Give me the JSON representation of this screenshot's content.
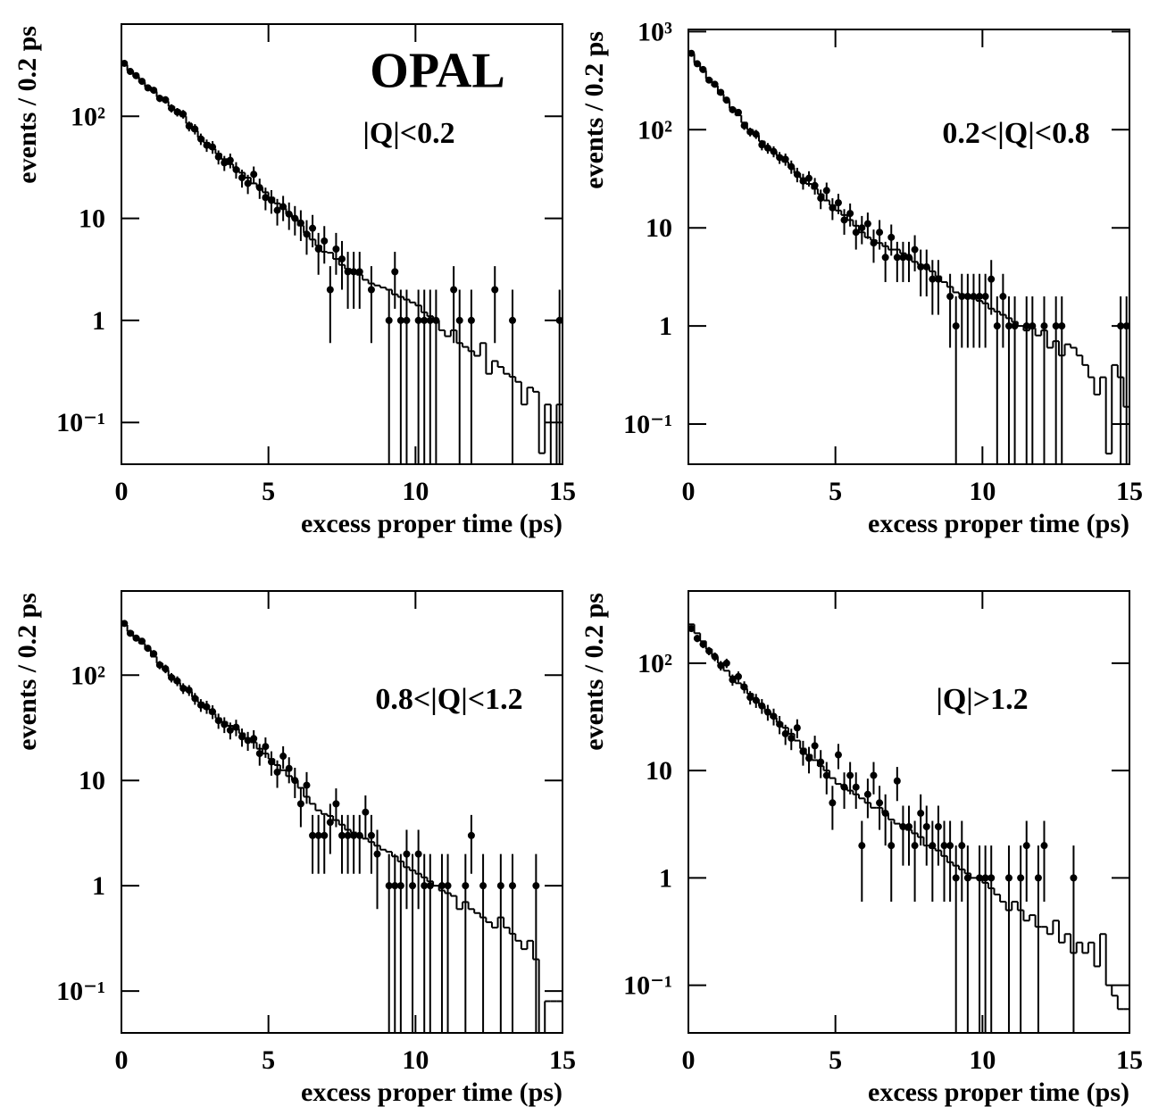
{
  "chart_data": [
    {
      "type": "histogram",
      "log_y": true,
      "color": "#000000",
      "annotations": [
        "OPAL",
        "|Q|<0.2"
      ],
      "xlabel": "excess proper time (ps)",
      "ylabel": "events / 0.2 ps",
      "xlim": [
        0,
        15
      ],
      "xticks": [
        0,
        5,
        10,
        15
      ],
      "ylim": [
        0.039,
        800
      ],
      "yticks": [
        {
          "value": 0.1,
          "label": "10⁻¹"
        },
        1,
        10,
        {
          "value": 100,
          "label": "10²"
        }
      ],
      "bins": [
        0,
        0.2,
        0.4,
        0.6,
        0.8,
        1,
        1.2,
        1.4,
        1.6,
        1.8,
        2,
        2.2,
        2.4,
        2.6,
        2.8,
        3,
        3.2,
        3.4,
        3.6,
        3.8,
        4,
        4.2,
        4.4,
        4.6,
        4.8,
        5,
        5.2,
        5.4,
        5.6,
        5.8,
        6,
        6.2,
        6.4,
        6.6,
        6.8,
        7,
        7.2,
        7.4,
        7.6,
        7.8,
        8,
        8.2,
        8.4,
        8.6,
        8.8,
        9,
        9.2,
        9.4,
        9.6,
        9.8,
        10,
        10.2,
        10.4,
        10.6,
        10.8,
        11,
        11.2,
        11.4,
        11.6,
        11.8,
        12,
        12.2,
        12.4,
        12.6,
        12.8,
        13,
        13.2,
        13.4,
        13.6,
        13.8,
        14,
        14.2,
        14.4,
        14.6,
        14.8,
        15
      ],
      "values": [
        320,
        280,
        245,
        215,
        195,
        175,
        155,
        140,
        125,
        115,
        100,
        85,
        72,
        62,
        55,
        48,
        43,
        38,
        34,
        31,
        28,
        25,
        22,
        20,
        18,
        16,
        14,
        12.5,
        11,
        10,
        8.5,
        7.2,
        6.2,
        5.4,
        4.7,
        4.6,
        4,
        3.5,
        3.2,
        3,
        2.8,
        2.5,
        2.3,
        2.2,
        2.1,
        2,
        1.8,
        1.7,
        1.6,
        1.5,
        1.4,
        1.2,
        1.1,
        1,
        0.8,
        0.7,
        0.8,
        0.6,
        0.55,
        0.5,
        0.45,
        0.6,
        0.3,
        0.4,
        0.35,
        0.3,
        0.28,
        0.25,
        0.15,
        0.22,
        0.2,
        0.05,
        0.15,
        0.03,
        0.15
      ],
      "data_values": [
        330,
        275,
        250,
        220,
        190,
        180,
        150,
        145,
        120,
        110,
        105,
        80,
        75,
        60,
        52,
        50,
        40,
        35,
        37,
        30,
        25,
        22,
        27,
        20,
        16,
        15,
        12,
        13,
        11,
        10,
        9,
        7,
        8,
        5,
        6,
        2,
        5,
        4,
        3,
        3,
        3,
        null,
        2,
        null,
        null,
        1,
        3,
        1,
        1,
        null,
        1,
        1,
        1,
        1,
        null,
        null,
        2,
        1,
        null,
        1,
        null,
        null,
        null,
        2,
        null,
        null,
        1,
        null,
        null,
        null,
        null,
        null,
        null,
        null,
        1
      ],
      "data_errors": [
        18.2,
        16.6,
        15.8,
        14.8,
        13.8,
        13.4,
        12.2,
        12,
        11,
        10.5,
        10.2,
        8.9,
        8.7,
        7.7,
        7.2,
        7.1,
        6.3,
        5.9,
        6.1,
        5.5,
        5,
        4.7,
        5.2,
        4.5,
        4,
        3.9,
        3.5,
        3.6,
        3.3,
        3.2,
        3,
        2.6,
        2.8,
        2.2,
        2.4,
        1.4,
        2.2,
        2,
        1.7,
        1.7,
        1.7,
        null,
        1.4,
        null,
        null,
        1,
        1.7,
        1,
        1,
        null,
        1,
        1,
        1,
        1,
        null,
        null,
        1.4,
        1,
        null,
        1,
        null,
        null,
        null,
        1.4,
        null,
        null,
        1,
        null,
        null,
        null,
        null,
        null,
        null,
        null,
        1
      ]
    },
    {
      "type": "histogram",
      "log_y": true,
      "color": "#000000",
      "annotations": [
        "0.2<|Q|<0.8"
      ],
      "xlabel": "excess proper time (ps)",
      "ylabel": "events / 0.2 ps",
      "xlim": [
        0,
        15
      ],
      "xticks": [
        0,
        5,
        10,
        15
      ],
      "ylim": [
        0.039,
        1050
      ],
      "yticks": [
        {
          "value": 0.1,
          "label": "10⁻¹"
        },
        1,
        10,
        {
          "value": 100,
          "label": "10²"
        },
        {
          "value": 1000,
          "label": "10³"
        }
      ],
      "bins": [
        0,
        0.2,
        0.4,
        0.6,
        0.8,
        1,
        1.2,
        1.4,
        1.6,
        1.8,
        2,
        2.2,
        2.4,
        2.6,
        2.8,
        3,
        3.2,
        3.4,
        3.6,
        3.8,
        4,
        4.2,
        4.4,
        4.6,
        4.8,
        5,
        5.2,
        5.4,
        5.6,
        5.8,
        6,
        6.2,
        6.4,
        6.6,
        6.8,
        7,
        7.2,
        7.4,
        7.6,
        7.8,
        8,
        8.2,
        8.4,
        8.6,
        8.8,
        9,
        9.2,
        9.4,
        9.6,
        9.8,
        10,
        10.2,
        10.4,
        10.6,
        10.8,
        11,
        11.2,
        11.4,
        11.6,
        11.8,
        12,
        12.2,
        12.4,
        12.6,
        12.8,
        13,
        13.2,
        13.4,
        13.6,
        13.8,
        14,
        14.2,
        14.4,
        14.6,
        14.8,
        15
      ],
      "values": [
        590,
        480,
        400,
        330,
        280,
        230,
        195,
        165,
        140,
        118,
        100,
        88,
        76,
        66,
        60,
        54,
        47,
        41,
        36,
        32,
        28,
        25,
        22,
        19,
        17,
        15,
        13.5,
        12,
        10.5,
        9,
        8,
        7.5,
        7,
        6.5,
        6,
        6,
        5.5,
        5,
        4.5,
        4.2,
        4,
        3.6,
        3.2,
        2.8,
        2.5,
        2.2,
        2.1,
        2,
        1.9,
        1.8,
        1.7,
        1.5,
        1.4,
        1.3,
        1.2,
        1.1,
        1,
        0.9,
        0.95,
        0.8,
        0.9,
        0.6,
        0.7,
        0.5,
        0.65,
        0.6,
        0.5,
        0.4,
        0.3,
        0.2,
        0.3,
        0.05,
        0.4,
        0.3,
        0.15
      ],
      "data_values": [
        600,
        470,
        410,
        320,
        290,
        240,
        200,
        160,
        150,
        110,
        95,
        90,
        70,
        65,
        60,
        52,
        50,
        42,
        35,
        30,
        32,
        27,
        20,
        24,
        16,
        18,
        12,
        14,
        9,
        10,
        11,
        7,
        9,
        5,
        8,
        5,
        5,
        5,
        6,
        4,
        4,
        3,
        3,
        null,
        2,
        1,
        2,
        2,
        2,
        2,
        2,
        3,
        1,
        2,
        1,
        1,
        null,
        1,
        1,
        null,
        1,
        null,
        1,
        1,
        null,
        null,
        null,
        null,
        null,
        null,
        null,
        null,
        null,
        1,
        1
      ],
      "data_errors": [
        24.5,
        21.7,
        20.2,
        17.9,
        17,
        15.5,
        14.1,
        12.6,
        12.2,
        10.5,
        9.7,
        9.5,
        8.4,
        8.1,
        7.7,
        7.2,
        7.1,
        6.5,
        5.9,
        5.5,
        5.7,
        5.2,
        4.5,
        4.9,
        4,
        4.2,
        3.5,
        3.7,
        3,
        3.2,
        3.3,
        2.6,
        3,
        2.2,
        2.8,
        2.2,
        2.2,
        2.2,
        2.4,
        2,
        2,
        1.7,
        1.7,
        null,
        1.4,
        1,
        1.4,
        1.4,
        1.4,
        1.4,
        1.4,
        1.7,
        1,
        1.4,
        1,
        1,
        null,
        1,
        1,
        null,
        1,
        null,
        1,
        1,
        null,
        null,
        null,
        null,
        null,
        null,
        null,
        null,
        null,
        1,
        1
      ]
    },
    {
      "type": "histogram",
      "log_y": true,
      "color": "#000000",
      "annotations": [
        "0.8<|Q|<1.2"
      ],
      "xlabel": "excess proper time (ps)",
      "ylabel": "events / 0.2 ps",
      "xlim": [
        0,
        15
      ],
      "xticks": [
        0,
        5,
        10,
        15
      ],
      "ylim": [
        0.04,
        630
      ],
      "yticks": [
        {
          "value": 0.1,
          "label": "10⁻¹"
        },
        1,
        10,
        {
          "value": 100,
          "label": "10²"
        }
      ],
      "bins": [
        0,
        0.2,
        0.4,
        0.6,
        0.8,
        1,
        1.2,
        1.4,
        1.6,
        1.8,
        2,
        2.2,
        2.4,
        2.6,
        2.8,
        3,
        3.2,
        3.4,
        3.6,
        3.8,
        4,
        4.2,
        4.4,
        4.6,
        4.8,
        5,
        5.2,
        5.4,
        5.6,
        5.8,
        6,
        6.2,
        6.4,
        6.6,
        6.8,
        7,
        7.2,
        7.4,
        7.6,
        7.8,
        8,
        8.2,
        8.4,
        8.6,
        8.8,
        9,
        9.2,
        9.4,
        9.6,
        9.8,
        10,
        10.2,
        10.4,
        10.6,
        10.8,
        11,
        11.2,
        11.4,
        11.6,
        11.8,
        12,
        12.2,
        12.4,
        12.6,
        12.8,
        13,
        13.2,
        13.4,
        13.6,
        13.8,
        14,
        14.2,
        14.4,
        14.6,
        14.8,
        15
      ],
      "values": [
        300,
        260,
        230,
        200,
        175,
        150,
        130,
        112,
        98,
        85,
        78,
        70,
        62,
        55,
        48,
        43,
        39,
        36,
        33,
        31,
        28,
        25,
        23,
        20,
        18,
        16,
        14,
        12.5,
        11,
        10,
        8.5,
        7,
        6,
        5.2,
        4.8,
        4.6,
        4.2,
        3.8,
        3.4,
        3.2,
        3,
        2.8,
        2.6,
        2.4,
        2.2,
        2.1,
        1.9,
        1.7,
        1.5,
        1.4,
        1.3,
        1.2,
        1.1,
        1,
        0.9,
        0.85,
        0.8,
        0.6,
        0.7,
        0.6,
        0.55,
        0.5,
        0.45,
        0.4,
        0.5,
        0.4,
        0.35,
        0.3,
        0.25,
        0.3,
        0.2,
        0.03,
        0.08,
        0.08,
        0.08
      ],
      "data_values": [
        310,
        250,
        225,
        210,
        180,
        160,
        125,
        115,
        95,
        88,
        75,
        72,
        60,
        52,
        50,
        45,
        37,
        34,
        30,
        32,
        26,
        24,
        25,
        18,
        21,
        15,
        12,
        17,
        13,
        10,
        6,
        9,
        3,
        3,
        3,
        4,
        6,
        3,
        3,
        3,
        3,
        5,
        3,
        2,
        null,
        1,
        1,
        1,
        2,
        1,
        2,
        1,
        1,
        null,
        1,
        1,
        null,
        null,
        1,
        3,
        null,
        1,
        null,
        null,
        1,
        null,
        1,
        null,
        null,
        null,
        1,
        null,
        null,
        null,
        null
      ],
      "data_errors": [
        17.6,
        15.8,
        15,
        14.5,
        13.4,
        12.6,
        11.2,
        10.7,
        9.7,
        9.4,
        8.7,
        8.5,
        7.7,
        7.2,
        7.1,
        6.7,
        6.1,
        5.8,
        5.5,
        5.7,
        5.1,
        4.9,
        5,
        4.2,
        4.6,
        3.9,
        3.5,
        4.1,
        3.6,
        3.2,
        2.4,
        3,
        1.7,
        1.7,
        1.7,
        2,
        2.4,
        1.7,
        1.7,
        1.7,
        1.7,
        2.2,
        1.7,
        1.4,
        null,
        1,
        1,
        1,
        1.4,
        1,
        1.4,
        1,
        1,
        null,
        1,
        1,
        null,
        null,
        1,
        1.7,
        null,
        1,
        null,
        null,
        1,
        null,
        1,
        null,
        null,
        null,
        1,
        null,
        null,
        null,
        null
      ]
    },
    {
      "type": "histogram",
      "log_y": true,
      "color": "#000000",
      "annotations": [
        "|Q|>1.2"
      ],
      "xlabel": "excess proper time (ps)",
      "ylabel": "events / 0.2 ps",
      "xlim": [
        0,
        15
      ],
      "xticks": [
        0,
        5,
        10,
        15
      ],
      "ylim": [
        0.036,
        470
      ],
      "yticks": [
        {
          "value": 0.1,
          "label": "10⁻¹"
        },
        1,
        10,
        {
          "value": 100,
          "label": "10²"
        }
      ],
      "bins": [
        0,
        0.2,
        0.4,
        0.6,
        0.8,
        1,
        1.2,
        1.4,
        1.6,
        1.8,
        2,
        2.2,
        2.4,
        2.6,
        2.8,
        3,
        3.2,
        3.4,
        3.6,
        3.8,
        4,
        4.2,
        4.4,
        4.6,
        4.8,
        5,
        5.2,
        5.4,
        5.6,
        5.8,
        6,
        6.2,
        6.4,
        6.6,
        6.8,
        7,
        7.2,
        7.4,
        7.6,
        7.8,
        8,
        8.2,
        8.4,
        8.6,
        8.8,
        9,
        9.2,
        9.4,
        9.6,
        9.8,
        10,
        10.2,
        10.4,
        10.6,
        10.8,
        11,
        11.2,
        11.4,
        11.6,
        11.8,
        12,
        12.2,
        12.4,
        12.6,
        12.8,
        13,
        13.2,
        13.4,
        13.6,
        13.8,
        14,
        14.2,
        14.4,
        14.6,
        14.8,
        15
      ],
      "values": [
        230,
        190,
        160,
        135,
        115,
        100,
        85,
        75,
        65,
        58,
        52,
        46,
        40,
        35,
        31,
        28,
        25,
        22,
        19,
        16,
        14,
        12.5,
        11,
        10,
        8.5,
        7.5,
        7,
        6.5,
        6,
        5.5,
        5,
        4.5,
        4.5,
        4,
        3.5,
        3.2,
        3,
        2.8,
        2.6,
        2.4,
        2,
        1.9,
        1.8,
        1.6,
        1.4,
        1.3,
        1.2,
        1.1,
        1,
        1,
        0.9,
        0.8,
        0.7,
        0.6,
        0.5,
        0.6,
        0.5,
        0.4,
        0.45,
        0.35,
        0.35,
        0.3,
        0.4,
        0.25,
        0.3,
        0.2,
        0.25,
        0.2,
        0.25,
        0.15,
        0.3,
        0.1,
        0.08,
        0.06,
        0.06
      ],
      "data_values": [
        210,
        170,
        150,
        130,
        115,
        95,
        100,
        70,
        75,
        60,
        48,
        45,
        40,
        35,
        32,
        27,
        22,
        20,
        25,
        15,
        13,
        17,
        12,
        9,
        5,
        14,
        7,
        9,
        7,
        2,
        6,
        9,
        5,
        4,
        2,
        8,
        3,
        3,
        2,
        4,
        3,
        2,
        3,
        2,
        2,
        1,
        2,
        1,
        null,
        1,
        1,
        1,
        null,
        null,
        1,
        null,
        1,
        2,
        null,
        1,
        2,
        null,
        null,
        null,
        null,
        1,
        null,
        null,
        null,
        null,
        null,
        null,
        null,
        null,
        null
      ],
      "data_errors": [
        14.5,
        13,
        12.2,
        11.4,
        10.7,
        9.7,
        10,
        8.4,
        8.7,
        7.7,
        6.9,
        6.7,
        6.3,
        5.9,
        5.7,
        5.2,
        4.7,
        4.5,
        5,
        3.9,
        3.6,
        4.1,
        3.5,
        3,
        2.2,
        3.7,
        2.6,
        3,
        2.6,
        1.4,
        2.4,
        3,
        2.2,
        2,
        1.4,
        2.8,
        1.7,
        1.7,
        1.4,
        2,
        1.7,
        1.4,
        1.7,
        1.4,
        1.4,
        1,
        1.4,
        1,
        null,
        1,
        1,
        1,
        null,
        null,
        1,
        null,
        1,
        1.4,
        null,
        1,
        1.4,
        null,
        null,
        null,
        null,
        1,
        null,
        null,
        null,
        null,
        null,
        null,
        null,
        null,
        null
      ]
    }
  ]
}
